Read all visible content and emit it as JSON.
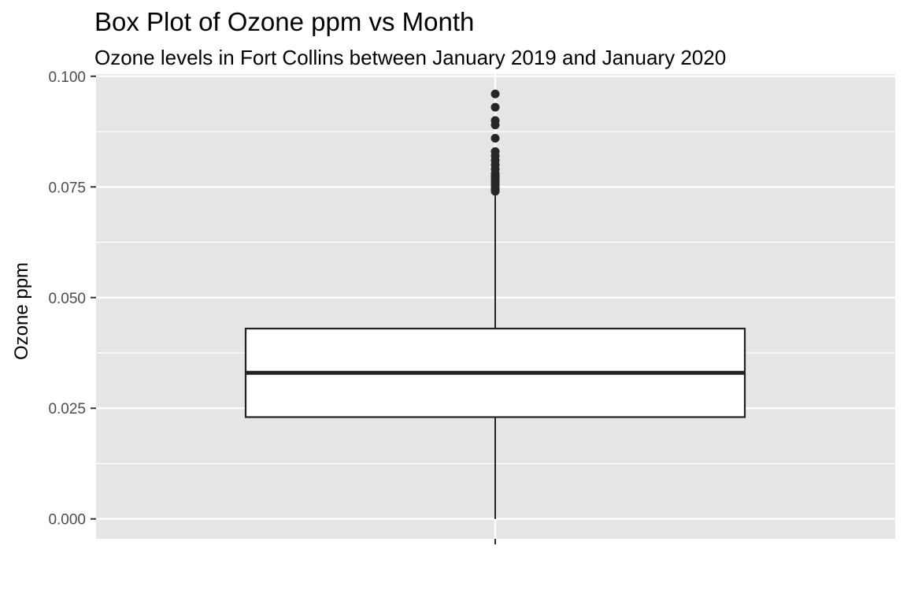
{
  "title": "Box Plot of Ozone ppm vs Month",
  "subtitle": "Ozone levels in Fort Collins between January 2019 and January 2020",
  "chart_data": {
    "type": "box",
    "title": "Box Plot of Ozone ppm vs Month",
    "subtitle": "Ozone levels in Fort Collins between January 2019 and January 2020",
    "xlabel": "",
    "ylabel": "Ozone ppm",
    "ylim": [
      -0.0045,
      0.1005
    ],
    "y_ticks": [
      0.0,
      0.025,
      0.05,
      0.075,
      0.1
    ],
    "y_tick_labels": [
      "0.000",
      "0.025",
      "0.050",
      "0.075",
      "0.100"
    ],
    "grid": true,
    "box": {
      "whisker_low": 0.0,
      "q1": 0.023,
      "median": 0.033,
      "q3": 0.043,
      "whisker_high": 0.073
    },
    "outliers": [
      0.074,
      0.0745,
      0.075,
      0.0755,
      0.076,
      0.0765,
      0.077,
      0.0775,
      0.078,
      0.079,
      0.08,
      0.081,
      0.082,
      0.083,
      0.086,
      0.089,
      0.09,
      0.093,
      0.096
    ],
    "colors": {
      "panel": "#e5e5e5",
      "grid": "#ffffff",
      "box_fill": "#ffffff",
      "box_stroke": "#222222"
    }
  }
}
